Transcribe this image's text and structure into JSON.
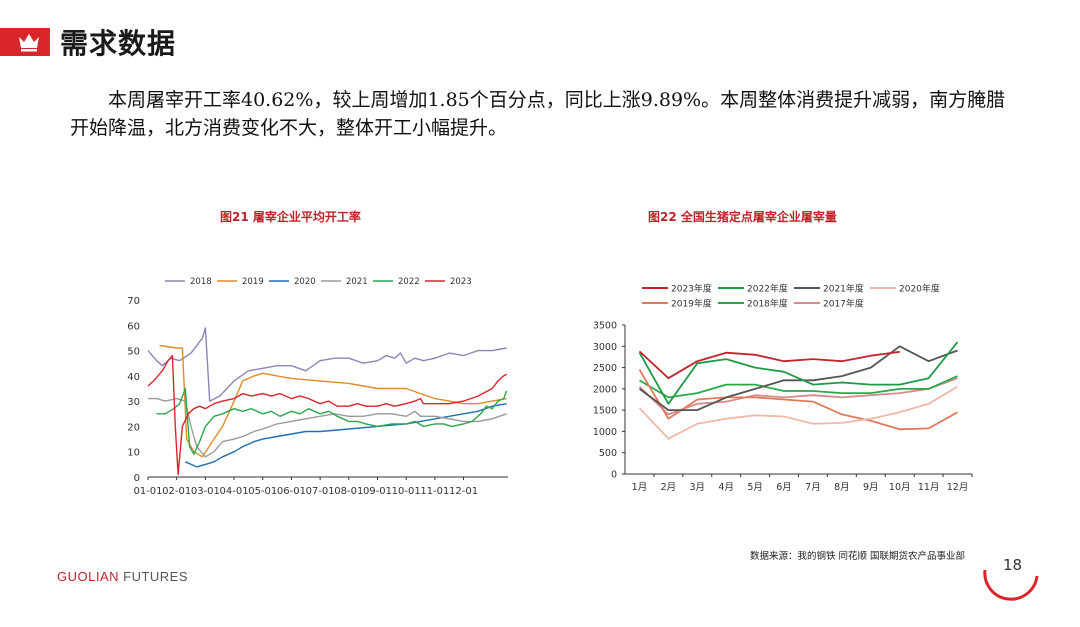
{
  "header": {
    "title": "需求数据"
  },
  "paragraph": "本周屠宰开工率40.62%，较上周增加1.85个百分点，同比上涨9.89%。本周整体消费提升减弱，南方腌腊开始降温，北方消费变化不大，整体开工小幅提升。",
  "colors": {
    "brand_red": "#d9262b",
    "caption_red": "#c0242a"
  },
  "chart_data": [
    {
      "type": "line",
      "title": "图21 屠宰企业平均开工率",
      "x_ticks": [
        "01-01",
        "02-01",
        "03-01",
        "04-01",
        "05-01",
        "06-01",
        "07-01",
        "08-01",
        "09-01",
        "10-01",
        "11-01",
        "12-01"
      ],
      "ylim": [
        0,
        70
      ],
      "y_ticks": [
        "0",
        "10",
        "20",
        "30",
        "40",
        "50",
        "60",
        "70"
      ],
      "legend_position": "top",
      "series": [
        {
          "name": "2018",
          "color": "#8e84b8",
          "points": [
            [
              0,
              50
            ],
            [
              0.3,
              46
            ],
            [
              0.5,
              44
            ],
            [
              0.8,
              47
            ],
            [
              1.1,
              46
            ],
            [
              1.5,
              49
            ],
            [
              1.9,
              55
            ],
            [
              2.0,
              59
            ],
            [
              2.15,
              30
            ],
            [
              2.5,
              32
            ],
            [
              3.0,
              38
            ],
            [
              3.5,
              42
            ],
            [
              4.0,
              43
            ],
            [
              4.5,
              44
            ],
            [
              5.0,
              44
            ],
            [
              5.5,
              42
            ],
            [
              6.0,
              46
            ],
            [
              6.5,
              47
            ],
            [
              7.0,
              47
            ],
            [
              7.5,
              45
            ],
            [
              8.0,
              46
            ],
            [
              8.3,
              48
            ],
            [
              8.6,
              47
            ],
            [
              8.8,
              49
            ],
            [
              9.0,
              45
            ],
            [
              9.3,
              47
            ],
            [
              9.6,
              46
            ],
            [
              10.0,
              47
            ],
            [
              10.5,
              49
            ],
            [
              11.0,
              48
            ],
            [
              11.5,
              50
            ],
            [
              12.0,
              50
            ],
            [
              12.5,
              51
            ]
          ]
        },
        {
          "name": "2019",
          "color": "#e08a2a",
          "points": [
            [
              0.4,
              52
            ],
            [
              1.0,
              51
            ],
            [
              1.2,
              51
            ],
            [
              1.35,
              15
            ],
            [
              1.6,
              10
            ],
            [
              1.9,
              8
            ],
            [
              2.3,
              15
            ],
            [
              2.6,
              20
            ],
            [
              3.0,
              30
            ],
            [
              3.3,
              38
            ],
            [
              3.7,
              40
            ],
            [
              4.0,
              41
            ],
            [
              4.5,
              40
            ],
            [
              5.0,
              39
            ],
            [
              6.0,
              38
            ],
            [
              7.0,
              37
            ],
            [
              8.0,
              35
            ],
            [
              9.0,
              35
            ],
            [
              9.5,
              33
            ],
            [
              10.0,
              31
            ],
            [
              10.5,
              30
            ],
            [
              11.0,
              29
            ],
            [
              11.5,
              29
            ],
            [
              12.0,
              30
            ],
            [
              12.5,
              31
            ]
          ]
        },
        {
          "name": "2020",
          "color": "#1f6fb5",
          "points": [
            [
              1.3,
              6
            ],
            [
              1.7,
              4
            ],
            [
              2.0,
              5
            ],
            [
              2.3,
              6
            ],
            [
              2.6,
              8
            ],
            [
              3.0,
              10
            ],
            [
              3.3,
              12
            ],
            [
              3.7,
              14
            ],
            [
              4.0,
              15
            ],
            [
              4.5,
              16
            ],
            [
              5.0,
              17
            ],
            [
              5.5,
              18
            ],
            [
              6.0,
              18
            ],
            [
              7.0,
              19
            ],
            [
              8.0,
              20
            ],
            [
              9.0,
              21
            ],
            [
              9.5,
              22
            ],
            [
              10.0,
              23
            ],
            [
              10.5,
              24
            ],
            [
              11.0,
              25
            ],
            [
              11.5,
              26
            ],
            [
              12.0,
              28
            ],
            [
              12.5,
              29
            ]
          ]
        },
        {
          "name": "2021",
          "color": "#9a9a9a",
          "points": [
            [
              0,
              31
            ],
            [
              0.3,
              31
            ],
            [
              0.6,
              30
            ],
            [
              1.0,
              31
            ],
            [
              1.3,
              30
            ],
            [
              1.5,
              20
            ],
            [
              1.7,
              12
            ],
            [
              2.0,
              8
            ],
            [
              2.3,
              10
            ],
            [
              2.6,
              14
            ],
            [
              3.0,
              15
            ],
            [
              3.3,
              16
            ],
            [
              3.7,
              18
            ],
            [
              4.0,
              19
            ],
            [
              4.5,
              21
            ],
            [
              5.0,
              22
            ],
            [
              5.5,
              23
            ],
            [
              6.0,
              24
            ],
            [
              6.5,
              25
            ],
            [
              7.0,
              24
            ],
            [
              7.5,
              24
            ],
            [
              8.0,
              25
            ],
            [
              8.5,
              25
            ],
            [
              9.0,
              24
            ],
            [
              9.3,
              26
            ],
            [
              9.5,
              24
            ],
            [
              10.0,
              24
            ],
            [
              10.5,
              23
            ],
            [
              11.0,
              22
            ],
            [
              11.5,
              22
            ],
            [
              12.0,
              23
            ],
            [
              12.5,
              25
            ]
          ]
        },
        {
          "name": "2022",
          "color": "#2aa84a",
          "points": [
            [
              0.3,
              25
            ],
            [
              0.6,
              25
            ],
            [
              0.9,
              27
            ],
            [
              1.1,
              29
            ],
            [
              1.3,
              35
            ],
            [
              1.45,
              12
            ],
            [
              1.6,
              9
            ],
            [
              1.8,
              14
            ],
            [
              2.0,
              20
            ],
            [
              2.3,
              24
            ],
            [
              2.6,
              25
            ],
            [
              3.0,
              27
            ],
            [
              3.3,
              26
            ],
            [
              3.6,
              27
            ],
            [
              4.0,
              25
            ],
            [
              4.3,
              26
            ],
            [
              4.6,
              24
            ],
            [
              5.0,
              26
            ],
            [
              5.3,
              25
            ],
            [
              5.6,
              27
            ],
            [
              6.0,
              25
            ],
            [
              6.3,
              26
            ],
            [
              6.6,
              24
            ],
            [
              7.0,
              22
            ],
            [
              7.3,
              22
            ],
            [
              7.6,
              21
            ],
            [
              8.0,
              20
            ],
            [
              8.5,
              21
            ],
            [
              9.0,
              21
            ],
            [
              9.3,
              22
            ],
            [
              9.6,
              20
            ],
            [
              10.0,
              21
            ],
            [
              10.3,
              21
            ],
            [
              10.6,
              20
            ],
            [
              11.0,
              21
            ],
            [
              11.3,
              22
            ],
            [
              11.6,
              25
            ],
            [
              11.8,
              28
            ],
            [
              12.0,
              27
            ],
            [
              12.2,
              30
            ],
            [
              12.4,
              31
            ],
            [
              12.5,
              34
            ]
          ]
        },
        {
          "name": "2023",
          "color": "#d9262b",
          "points": [
            [
              0,
              36
            ],
            [
              0.2,
              38
            ],
            [
              0.5,
              42
            ],
            [
              0.7,
              46
            ],
            [
              0.85,
              48
            ],
            [
              0.95,
              20
            ],
            [
              1.05,
              1
            ],
            [
              1.2,
              20
            ],
            [
              1.4,
              25
            ],
            [
              1.6,
              27
            ],
            [
              1.8,
              28
            ],
            [
              2.0,
              27
            ],
            [
              2.3,
              29
            ],
            [
              2.6,
              30
            ],
            [
              3.0,
              31
            ],
            [
              3.3,
              33
            ],
            [
              3.6,
              32
            ],
            [
              4.0,
              33
            ],
            [
              4.3,
              32
            ],
            [
              4.6,
              33
            ],
            [
              5.0,
              31
            ],
            [
              5.3,
              32
            ],
            [
              5.6,
              31
            ],
            [
              6.0,
              29
            ],
            [
              6.3,
              30
            ],
            [
              6.6,
              28
            ],
            [
              7.0,
              28
            ],
            [
              7.3,
              29
            ],
            [
              7.6,
              28
            ],
            [
              8.0,
              28
            ],
            [
              8.3,
              29
            ],
            [
              8.6,
              28
            ],
            [
              9.0,
              29
            ],
            [
              9.3,
              30
            ],
            [
              9.5,
              31
            ],
            [
              9.6,
              29
            ],
            [
              10.0,
              29
            ],
            [
              10.5,
              29
            ],
            [
              11.0,
              30
            ],
            [
              11.5,
              32
            ],
            [
              12.0,
              35
            ],
            [
              12.2,
              38
            ],
            [
              12.4,
              40
            ],
            [
              12.5,
              40.62
            ]
          ]
        }
      ]
    },
    {
      "type": "line",
      "title": "图22 全国生猪定点屠宰企业屠宰量",
      "categories": [
        "1月",
        "2月",
        "3月",
        "4月",
        "5月",
        "6月",
        "7月",
        "8月",
        "9月",
        "10月",
        "11月",
        "12月"
      ],
      "ylim": [
        0,
        3500
      ],
      "y_ticks": [
        "0",
        "500",
        "1000",
        "1500",
        "2000",
        "2500",
        "3000",
        "3500"
      ],
      "legend_position": "top",
      "series": [
        {
          "name": "2023年度",
          "color": "#c0242a",
          "values": [
            2880,
            2250,
            2650,
            2850,
            2800,
            2650,
            2700,
            2650,
            2780,
            2870,
            null,
            null
          ]
        },
        {
          "name": "2022年度",
          "color": "#1f9a45",
          "values": [
            2850,
            1650,
            2600,
            2700,
            2500,
            2400,
            2100,
            2150,
            2100,
            2100,
            2250,
            3100
          ]
        },
        {
          "name": "2021年度",
          "color": "#555555",
          "values": [
            2000,
            1500,
            1500,
            1800,
            2000,
            2200,
            2200,
            2300,
            2500,
            3000,
            2650,
            2900
          ]
        },
        {
          "name": "2020年度",
          "color": "#f0b8a8",
          "values": [
            1550,
            830,
            1180,
            1300,
            1380,
            1350,
            1180,
            1200,
            1300,
            1450,
            1650,
            2050
          ]
        },
        {
          "name": "2019年度",
          "color": "#e07a5a",
          "values": [
            2450,
            1300,
            1750,
            1800,
            1800,
            1750,
            1700,
            1400,
            1250,
            1050,
            1070,
            1450
          ]
        },
        {
          "name": "2018年度",
          "color": "#2aa84a",
          "values": [
            2200,
            1800,
            1900,
            2100,
            2100,
            1950,
            1950,
            1900,
            1900,
            2000,
            2000,
            2300
          ]
        },
        {
          "name": "2017年度",
          "color": "#d98a8a",
          "values": [
            2050,
            1400,
            1650,
            1700,
            1850,
            1800,
            1850,
            1800,
            1850,
            1900,
            2000,
            2250
          ]
        }
      ]
    }
  ],
  "source": "数据来源：我的钢铁 同花顺 国联期货农产品事业部",
  "footer": {
    "brand_main": "GUOLIAN",
    "brand_sub": "FUTURES",
    "page": "18"
  }
}
